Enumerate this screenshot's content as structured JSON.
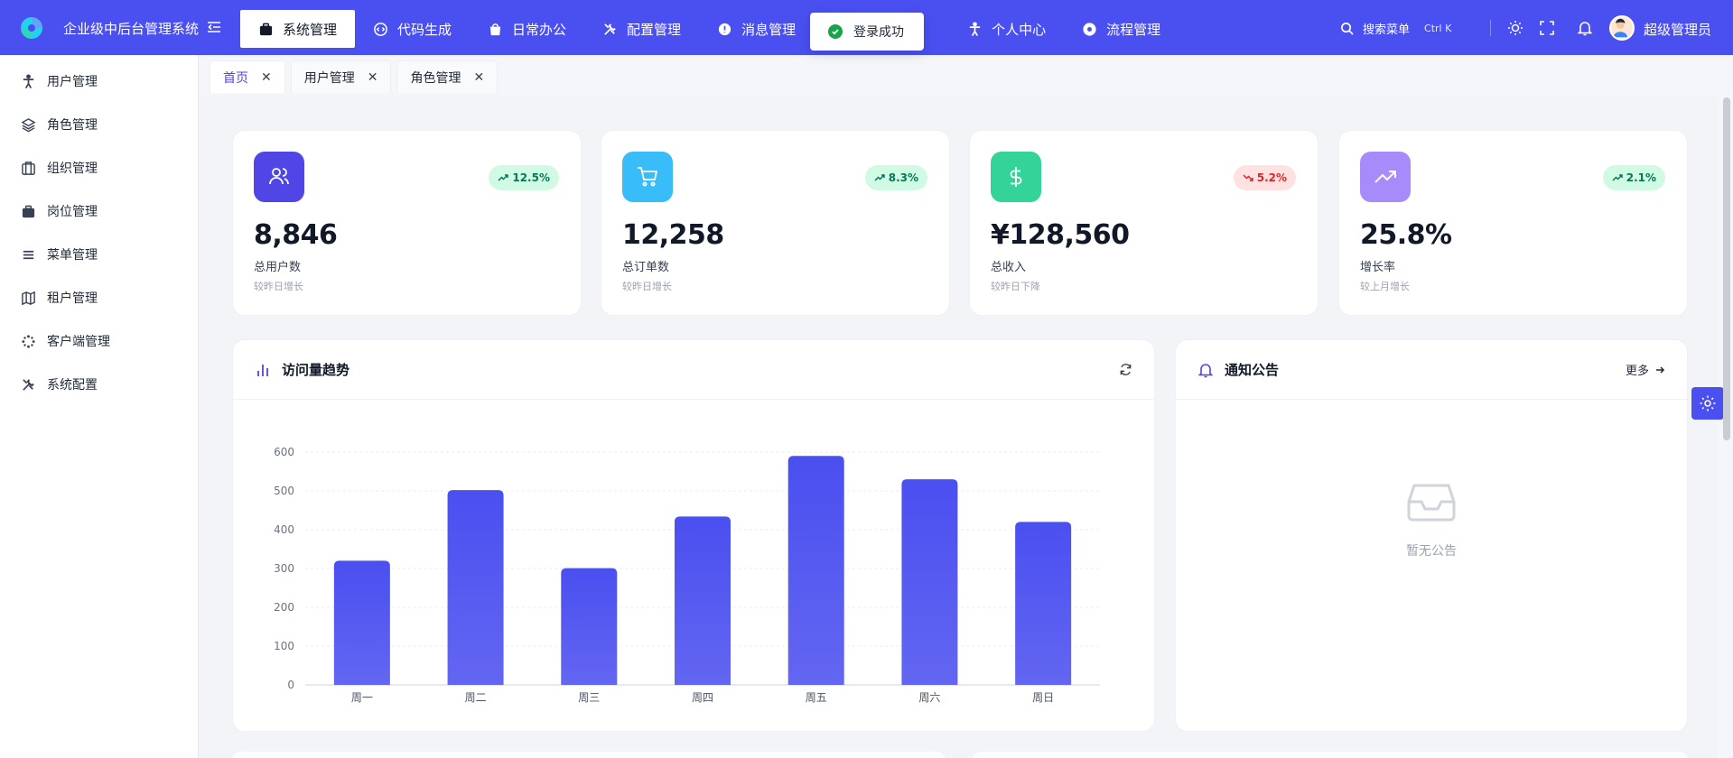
{
  "app": {
    "title": "企业级中后台管理系统"
  },
  "nav": [
    {
      "label": "系统管理",
      "icon": "briefcase-icon",
      "active": true
    },
    {
      "label": "代码生成",
      "icon": "code-icon"
    },
    {
      "label": "日常办公",
      "icon": "bag-icon"
    },
    {
      "label": "配置管理",
      "icon": "tools-icon"
    },
    {
      "label": "消息管理",
      "icon": "bell-icon"
    },
    {
      "label": "个人中心",
      "icon": "person-icon"
    },
    {
      "label": "流程管理",
      "icon": "gear-icon"
    }
  ],
  "toast": {
    "text": "登录成功"
  },
  "search": {
    "label": "搜索菜单",
    "shortcut": "Ctrl K"
  },
  "user": {
    "name": "超级管理员"
  },
  "sidebar": {
    "items": [
      {
        "label": "用户管理",
        "icon": "person-icon"
      },
      {
        "label": "角色管理",
        "icon": "layers-icon"
      },
      {
        "label": "组织管理",
        "icon": "building-icon"
      },
      {
        "label": "岗位管理",
        "icon": "briefcase-icon"
      },
      {
        "label": "菜单管理",
        "icon": "menu-icon"
      },
      {
        "label": "租户管理",
        "icon": "map-icon"
      },
      {
        "label": "客户端管理",
        "icon": "apps-icon"
      },
      {
        "label": "系统配置",
        "icon": "tools-icon"
      }
    ]
  },
  "tabs": [
    {
      "label": "首页",
      "active": true
    },
    {
      "label": "用户管理"
    },
    {
      "label": "角色管理"
    }
  ],
  "stats": [
    {
      "value": "8,846",
      "label": "总用户数",
      "sub": "较昨日增长",
      "trend": "12.5%",
      "direction": "up",
      "color": "#4f46e5",
      "icon": "users-icon"
    },
    {
      "value": "12,258",
      "label": "总订单数",
      "sub": "较昨日增长",
      "trend": "8.3%",
      "direction": "up",
      "color": "#38bdf8",
      "icon": "cart-icon"
    },
    {
      "value": "¥128,560",
      "label": "总收入",
      "sub": "较昨日下降",
      "trend": "5.2%",
      "direction": "down",
      "color": "#34d399",
      "icon": "dollar-icon"
    },
    {
      "value": "25.8%",
      "label": "增长率",
      "sub": "较上月增长",
      "trend": "2.1%",
      "direction": "up",
      "color": "#a78bfa",
      "icon": "trending-up-icon"
    }
  ],
  "visits": {
    "title": "访问量趋势"
  },
  "notice": {
    "title": "通知公告",
    "more": "更多",
    "empty": "暂无公告"
  },
  "chart_data": {
    "type": "bar",
    "title": "访问量趋势",
    "categories": [
      "周一",
      "周二",
      "周三",
      "周四",
      "周五",
      "周六",
      "周日"
    ],
    "values": [
      320,
      502,
      301,
      434,
      590,
      530,
      420
    ],
    "ylim": [
      0,
      600
    ],
    "yticks": [
      0,
      100,
      200,
      300,
      400,
      500,
      600
    ],
    "grid": true,
    "color": "#4a4ff0"
  }
}
